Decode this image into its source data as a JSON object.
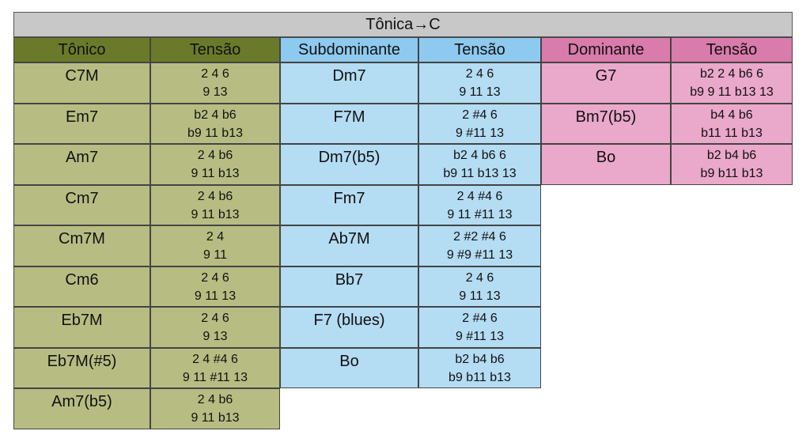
{
  "title": "Tônica→C",
  "headers": {
    "tonic": "Tônico",
    "tension1": "Tensão",
    "subdominant": "Subdominante",
    "tension2": "Tensão",
    "dominant": "Dominante",
    "tension3": "Tensão"
  },
  "colors": {
    "tonic_header": "#6b7a2a",
    "tonic_cell": "#b7bd82",
    "sub_header": "#8ecaf0",
    "sub_cell": "#b4dcf3",
    "dom_header": "#d97bab",
    "dom_cell": "#eaa8ca",
    "title_bg": "#c8c8c8"
  },
  "tonic": [
    {
      "chord": "C7M",
      "t1": "2 4 6",
      "t2": "9 13"
    },
    {
      "chord": "Em7",
      "t1": "b2 4 b6",
      "t2": "b9 11 b13"
    },
    {
      "chord": "Am7",
      "t1": "2 4 b6",
      "t2": "9 11 b13"
    },
    {
      "chord": "Cm7",
      "t1": "2 4 b6",
      "t2": "9 11 b13"
    },
    {
      "chord": "Cm7M",
      "t1": "2 4",
      "t2": "9 11"
    },
    {
      "chord": "Cm6",
      "t1": "2 4 6",
      "t2": "9 11 13"
    },
    {
      "chord": "Eb7M",
      "t1": "2 4 6",
      "t2": "9 13"
    },
    {
      "chord": "Eb7M(#5)",
      "t1": "2 4 #4 6",
      "t2": "9 11 #11 13"
    },
    {
      "chord": "Am7(b5)",
      "t1": "2 4 b6",
      "t2": "9 11 b13"
    }
  ],
  "subdominant": [
    {
      "chord": "Dm7",
      "t1": "2 4 6",
      "t2": "9 11 13"
    },
    {
      "chord": "F7M",
      "t1": "2 #4 6",
      "t2": "9 #11 13"
    },
    {
      "chord": "Dm7(b5)",
      "t1": "b2 4 b6 6",
      "t2": "b9 11 b13 13"
    },
    {
      "chord": "Fm7",
      "t1": "2 4 #4 6",
      "t2": "9 11 #11 13"
    },
    {
      "chord": "Ab7M",
      "t1": "2 #2 #4 6",
      "t2": "9 #9 #11 13"
    },
    {
      "chord": "Bb7",
      "t1": "2 4 6",
      "t2": "9 11 13"
    },
    {
      "chord": "F7 (blues)",
      "t1": "2 #4 6",
      "t2": "9 #11 13"
    },
    {
      "chord": "Bo",
      "t1": "b2 b4 b6",
      "t2": "b9 b11 b13"
    }
  ],
  "dominant": [
    {
      "chord": "G7",
      "t1": "b2 2 4 b6 6",
      "t2": "b9 9 11 b13 13"
    },
    {
      "chord": "Bm7(b5)",
      "t1": "b4 4 b6",
      "t2": "b11 11 b13"
    },
    {
      "chord": "Bo",
      "t1": "b2 b4 b6",
      "t2": "b9 b11 b13"
    }
  ]
}
